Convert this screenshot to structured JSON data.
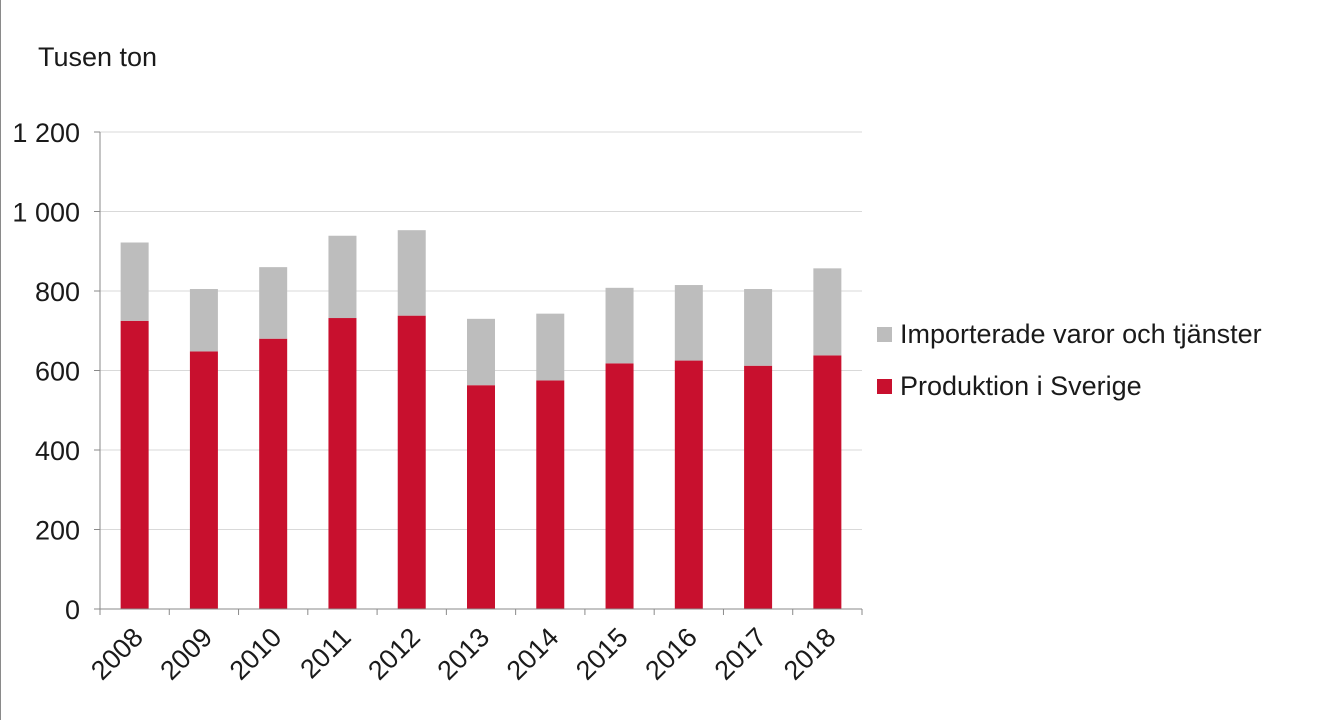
{
  "chart_data": {
    "type": "bar",
    "stacked": true,
    "title": "",
    "ylabel": "Tusen ton",
    "xlabel": "",
    "categories": [
      "2008",
      "2009",
      "2010",
      "2011",
      "2012",
      "2013",
      "2014",
      "2015",
      "2016",
      "2017",
      "2018"
    ],
    "series": [
      {
        "name": "Produktion i Sverige",
        "color": "#C8102E",
        "values": [
          725,
          648,
          680,
          732,
          738,
          563,
          575,
          618,
          625,
          612,
          638
        ]
      },
      {
        "name": "Importerade varor och tjänster",
        "color": "#BDBDBD",
        "values": [
          197,
          157,
          180,
          207,
          215,
          167,
          168,
          190,
          190,
          193,
          219
        ]
      }
    ],
    "ylim": [
      0,
      1200
    ],
    "yticks": [
      0,
      200,
      400,
      600,
      800,
      1000,
      1200
    ],
    "ytick_labels": [
      "0",
      "200",
      "400",
      "600",
      "800",
      "1 000",
      "1 200"
    ],
    "grid": true,
    "legend_position": "right"
  }
}
